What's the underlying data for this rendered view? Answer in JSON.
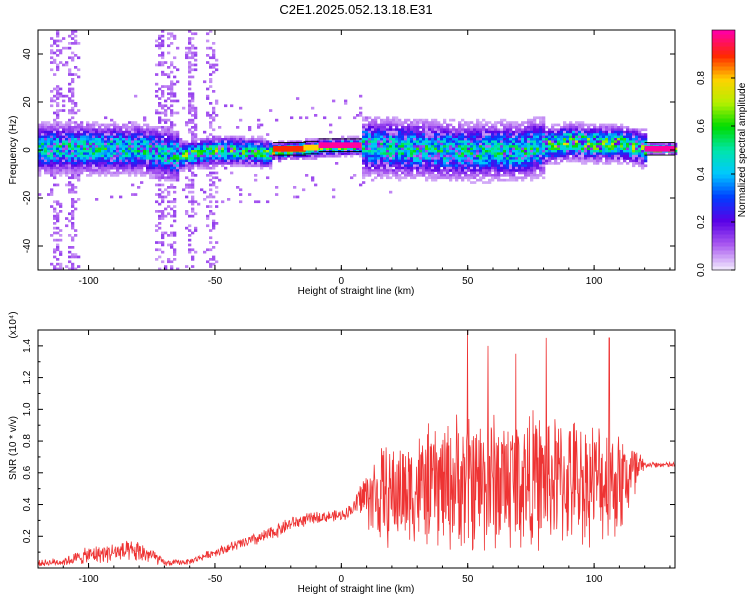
{
  "title": "C2E1.2025.052.13.18.E31",
  "chart_data": [
    {
      "type": "heatmap",
      "xlabel": "Height of straight line (km)",
      "ylabel": "Frequency (Hz)",
      "xlim": [
        -120,
        132
      ],
      "ylim": [
        -50,
        50
      ],
      "xticks": [
        -100,
        -50,
        0,
        50,
        100
      ],
      "yticks": [
        -40,
        -20,
        0,
        20,
        40
      ],
      "colorbar": {
        "label": "Normalized spectral amplitude",
        "range": [
          0,
          1
        ],
        "ticks": [
          "0.0",
          "0.2",
          "0.4",
          "0.6",
          "0.8"
        ],
        "colormap": "rainbow (white→purple→blue→cyan→green→yellow→red→magenta)"
      },
      "band_center_hz": [
        {
          "x": -120,
          "y": 1
        },
        {
          "x": -100,
          "y": 1
        },
        {
          "x": -80,
          "y": 1
        },
        {
          "x": -65,
          "y": -2
        },
        {
          "x": -50,
          "y": 0
        },
        {
          "x": -40,
          "y": 0
        },
        {
          "x": -30,
          "y": -1
        },
        {
          "x": -25,
          "y": 0
        },
        {
          "x": -12,
          "y": 1
        },
        {
          "x": 0,
          "y": 2
        },
        {
          "x": 8,
          "y": 2
        },
        {
          "x": 25,
          "y": 1
        },
        {
          "x": 50,
          "y": 0
        },
        {
          "x": 70,
          "y": 0
        },
        {
          "x": 80,
          "y": 2
        },
        {
          "x": 90,
          "y": 4
        },
        {
          "x": 100,
          "y": 3
        },
        {
          "x": 110,
          "y": 3
        },
        {
          "x": 120,
          "y": 1
        },
        {
          "x": 132,
          "y": 1
        }
      ],
      "ridge_segments": [
        {
          "x": [
            -27,
            -14
          ],
          "y": 0.5,
          "amp": 0.9
        },
        {
          "x": [
            -15,
            -9
          ],
          "y": 1.0,
          "amp": 0.8
        },
        {
          "x": [
            -9,
            8
          ],
          "y": 2.0,
          "amp": 1.0
        },
        {
          "x": [
            120,
            132
          ],
          "y": 0.5,
          "amp": 1.0
        }
      ],
      "spread_hz_by_region": [
        {
          "x": [
            -120,
            -65
          ],
          "spread": 7,
          "amp": 0.55
        },
        {
          "x": [
            -65,
            -28
          ],
          "spread": 4,
          "amp": 0.65
        },
        {
          "x": [
            -28,
            8
          ],
          "spread": 2.5,
          "amp": 0.75
        },
        {
          "x": [
            8,
            80
          ],
          "spread": 8,
          "amp": 0.55
        },
        {
          "x": [
            80,
            120
          ],
          "spread": 5,
          "amp": 0.7
        },
        {
          "x": [
            120,
            132
          ],
          "spread": 1.5,
          "amp": 0.9
        }
      ],
      "vertical_noise_columns_km": [
        -113,
        -107,
        -72,
        -68,
        -60,
        -52
      ]
    },
    {
      "type": "line",
      "xlabel": "Height of straight line (km)",
      "ylabel": "SNR (10 * v/v)",
      "y_multiplier": "(x10⁴)",
      "xlim": [
        -120,
        132
      ],
      "ylim": [
        0,
        1.5
      ],
      "xticks": [
        -100,
        -50,
        0,
        50,
        100
      ],
      "yticks": [
        "0.2",
        "0.4",
        "0.6",
        "0.8",
        "1.0",
        "1.2",
        "1.4"
      ],
      "color": "#ee3333",
      "series": [
        {
          "envelope": [
            {
              "x": -120,
              "mean": 0.03,
              "amp": 0.02
            },
            {
              "x": -110,
              "mean": 0.04,
              "amp": 0.03
            },
            {
              "x": -100,
              "mean": 0.08,
              "amp": 0.06
            },
            {
              "x": -90,
              "mean": 0.1,
              "amp": 0.07
            },
            {
              "x": -80,
              "mean": 0.1,
              "amp": 0.08
            },
            {
              "x": -75,
              "mean": 0.08,
              "amp": 0.06
            },
            {
              "x": -70,
              "mean": 0.03,
              "amp": 0.02
            },
            {
              "x": -60,
              "mean": 0.04,
              "amp": 0.02
            },
            {
              "x": -50,
              "mean": 0.1,
              "amp": 0.03
            },
            {
              "x": -40,
              "mean": 0.15,
              "amp": 0.04
            },
            {
              "x": -30,
              "mean": 0.2,
              "amp": 0.05
            },
            {
              "x": -20,
              "mean": 0.28,
              "amp": 0.05
            },
            {
              "x": -10,
              "mean": 0.32,
              "amp": 0.04
            },
            {
              "x": 0,
              "mean": 0.33,
              "amp": 0.04
            },
            {
              "x": 5,
              "mean": 0.38,
              "amp": 0.05
            },
            {
              "x": 8,
              "mean": 0.45,
              "amp": 0.15
            },
            {
              "x": 15,
              "mean": 0.45,
              "amp": 0.35
            },
            {
              "x": 30,
              "mean": 0.5,
              "amp": 0.4
            },
            {
              "x": 50,
              "mean": 0.55,
              "amp": 0.5
            },
            {
              "x": 70,
              "mean": 0.55,
              "amp": 0.5
            },
            {
              "x": 90,
              "mean": 0.55,
              "amp": 0.45
            },
            {
              "x": 110,
              "mean": 0.55,
              "amp": 0.4
            },
            {
              "x": 118,
              "mean": 0.6,
              "amp": 0.2
            },
            {
              "x": 120,
              "mean": 0.65,
              "amp": 0.02
            },
            {
              "x": 132,
              "mean": 0.65,
              "amp": 0.02
            }
          ],
          "notable_peaks": [
            {
              "x": 50,
              "y": 1.5
            },
            {
              "x": 58,
              "y": 1.4
            },
            {
              "x": 69,
              "y": 1.35
            },
            {
              "x": 81,
              "y": 1.45
            },
            {
              "x": 106,
              "y": 1.45
            }
          ]
        }
      ]
    }
  ]
}
